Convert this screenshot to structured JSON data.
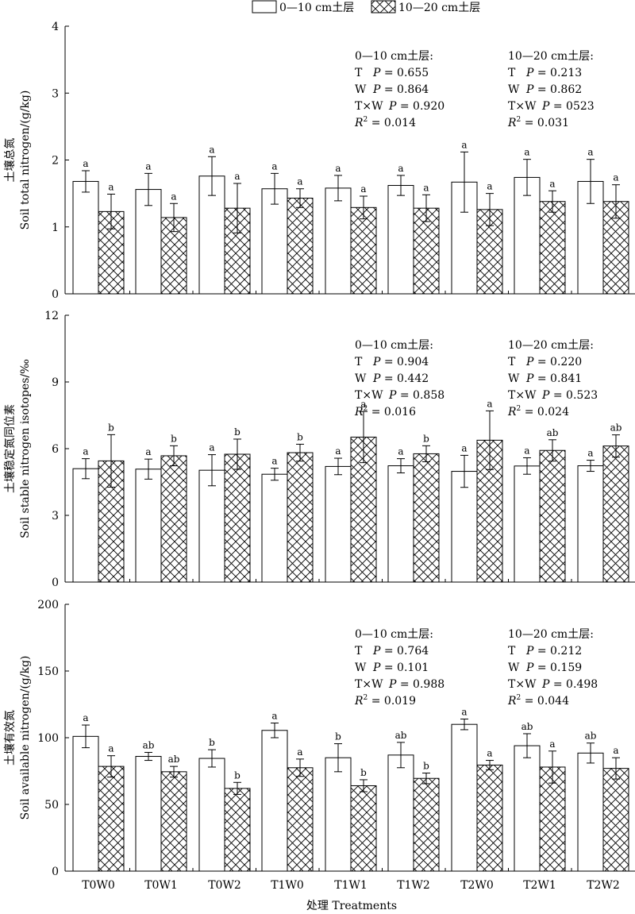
{
  "legend": {
    "items": [
      {
        "label": "0—10 cm土层",
        "pattern": "open"
      },
      {
        "label": "10—20 cm土层",
        "pattern": "crosshatch"
      }
    ]
  },
  "x_axis_title": "处理 Treatments",
  "chart_data": [
    {
      "type": "bar",
      "ylabel_cn": "土壤总氮",
      "ylabel_en": "Soil total nitrogen/(g/kg)",
      "ylim": [
        0,
        4
      ],
      "yticks": [
        0,
        1,
        2,
        3,
        4
      ],
      "categories": [
        "T0W0",
        "T0W1",
        "T0W2",
        "T1W0",
        "T1W1",
        "T1W2",
        "T2W0",
        "T2W1",
        "T2W2"
      ],
      "series": [
        {
          "name": "0—10 cm土层",
          "values": [
            1.68,
            1.56,
            1.76,
            1.57,
            1.58,
            1.62,
            1.67,
            1.74,
            1.68
          ],
          "errors": [
            0.16,
            0.24,
            0.29,
            0.23,
            0.19,
            0.15,
            0.45,
            0.27,
            0.33
          ],
          "letters": [
            "a",
            "a",
            "a",
            "a",
            "a",
            "a",
            "a",
            "a",
            "a"
          ]
        },
        {
          "name": "10—20 cm土层",
          "values": [
            1.23,
            1.14,
            1.28,
            1.43,
            1.29,
            1.28,
            1.26,
            1.38,
            1.38
          ],
          "errors": [
            0.26,
            0.21,
            0.37,
            0.14,
            0.17,
            0.2,
            0.24,
            0.16,
            0.25
          ],
          "letters": [
            "a",
            "a",
            "a",
            "a",
            "a",
            "a",
            "a",
            "a",
            "a"
          ]
        }
      ],
      "stats": [
        {
          "title": "0—10 cm土层:",
          "lines": [
            [
              "T",
              "P = 0.655"
            ],
            [
              "W",
              "P = 0.864"
            ],
            [
              "T×W",
              "P = 0.920"
            ]
          ],
          "r2": "= 0.014"
        },
        {
          "title": "10—20 cm土层:",
          "lines": [
            [
              "T",
              "P = 0.213"
            ],
            [
              "W",
              "P = 0.862"
            ],
            [
              "T×W",
              "P = 0523"
            ]
          ],
          "r2": "= 0.031"
        }
      ]
    },
    {
      "type": "bar",
      "ylabel_cn": "土壤稳定氮同位素",
      "ylabel_en": "Soil stable nitrogen isotopes/‰",
      "ylim": [
        0,
        12
      ],
      "yticks": [
        0,
        3,
        6,
        9,
        12
      ],
      "categories": [
        "T0W0",
        "T0W1",
        "T0W2",
        "T1W0",
        "T1W1",
        "T1W2",
        "T2W0",
        "T2W1",
        "T2W2"
      ],
      "series": [
        {
          "name": "0—10 cm土层",
          "values": [
            5.1,
            5.08,
            5.03,
            4.85,
            5.2,
            5.23,
            4.98,
            5.22,
            5.23
          ],
          "errors": [
            0.45,
            0.45,
            0.7,
            0.27,
            0.37,
            0.32,
            0.72,
            0.37,
            0.25
          ],
          "letters": [
            "a",
            "a",
            "a",
            "a",
            "a",
            "a",
            "a",
            "a",
            "a"
          ]
        },
        {
          "name": "10—20 cm土层",
          "values": [
            5.45,
            5.68,
            5.75,
            5.82,
            6.52,
            5.77,
            6.38,
            5.92,
            6.12
          ],
          "errors": [
            1.18,
            0.45,
            0.68,
            0.38,
            1.15,
            0.36,
            1.32,
            0.48,
            0.5
          ],
          "letters": [
            "b",
            "b",
            "b",
            "b",
            "a",
            "b",
            "a",
            "ab",
            "ab"
          ]
        }
      ],
      "stats": [
        {
          "title": "0—10 cm土层:",
          "lines": [
            [
              "T",
              "P = 0.904"
            ],
            [
              "W",
              "P = 0.442"
            ],
            [
              "T×W",
              "P = 0.858"
            ]
          ],
          "r2": "= 0.016"
        },
        {
          "title": "10—20 cm土层:",
          "lines": [
            [
              "T",
              "P = 0.220"
            ],
            [
              "W",
              "P = 0.841"
            ],
            [
              "T×W",
              "P = 0.523"
            ]
          ],
          "r2": "= 0.024"
        }
      ]
    },
    {
      "type": "bar",
      "ylabel_cn": "土壤有效氮",
      "ylabel_en": "Soil available nitrogen/(g/kg)",
      "ylim": [
        0,
        200
      ],
      "yticks": [
        0,
        50,
        100,
        150,
        200
      ],
      "categories": [
        "T0W0",
        "T0W1",
        "T0W2",
        "T1W0",
        "T1W1",
        "T1W2",
        "T2W0",
        "T2W1",
        "T2W2"
      ],
      "series": [
        {
          "name": "0—10 cm土层",
          "values": [
            101,
            86,
            84.5,
            105.5,
            85,
            87,
            110,
            94,
            88.5
          ],
          "errors": [
            8.5,
            3,
            6.5,
            5.5,
            10.5,
            9.5,
            4,
            9,
            7.5
          ],
          "letters": [
            "a",
            "ab",
            "b",
            "a",
            "b",
            "ab",
            "a",
            "ab",
            "ab"
          ]
        },
        {
          "name": "10—20 cm土层",
          "values": [
            78.5,
            74.5,
            62,
            77.5,
            64,
            69.5,
            79.5,
            78,
            77
          ],
          "errors": [
            8,
            4,
            4.5,
            6.5,
            4.5,
            4,
            3.5,
            12,
            8
          ],
          "letters": [
            "a",
            "ab",
            "b",
            "a",
            "b",
            "b",
            "a",
            "a",
            "a"
          ]
        }
      ],
      "stats": [
        {
          "title": "0—10 cm土层:",
          "lines": [
            [
              "T",
              "P = 0.764"
            ],
            [
              "W",
              "P = 0.101"
            ],
            [
              "T×W",
              "P = 0.988"
            ]
          ],
          "r2": "= 0.019"
        },
        {
          "title": "10—20 cm土层:",
          "lines": [
            [
              "T",
              "P = 0.212"
            ],
            [
              "W",
              "P = 0.159"
            ],
            [
              "T×W",
              "P = 0.498"
            ]
          ],
          "r2": "= 0.044"
        }
      ]
    }
  ]
}
